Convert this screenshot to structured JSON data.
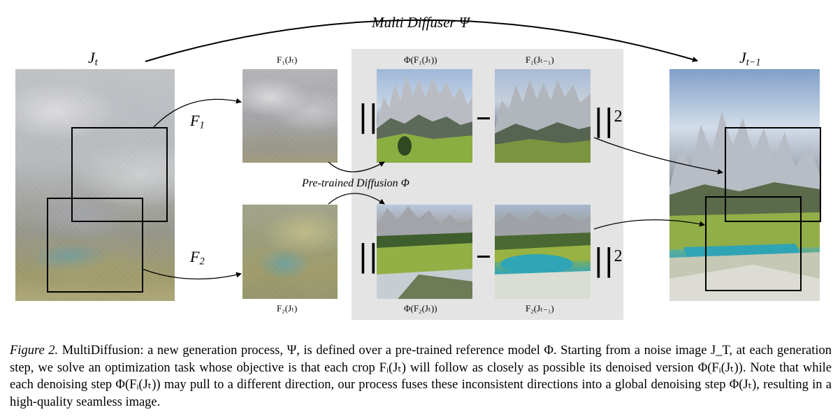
{
  "figure": {
    "multi_diffuser_label": "Multi Diffuser Ψ",
    "jt_label": {
      "base": "J",
      "sub": "t"
    },
    "jt1_label": {
      "base": "J",
      "sub": "t−1"
    },
    "f1_arrow_label": {
      "base": "F",
      "sub": "1"
    },
    "f2_arrow_label": {
      "base": "F",
      "sub": "2"
    },
    "f1_jt_label": "F₁(Jₜ)",
    "f2_jt_label": "F₂(Jₜ)",
    "phi_f1_label": "Φ(F₁(Jₜ))",
    "phi_f2_label": "Φ(F₂(Jₜ))",
    "f1_next_label": "F₁(Jₜ₋₁)",
    "f2_next_label": "F₂(Jₜ₋₁)",
    "pretrained_label": "Pre-trained Diffusion Φ",
    "norm_open": "||",
    "norm_close": "||",
    "norm_power": "2"
  },
  "caption": {
    "label": "Figure 2.",
    "text": "MultiDiffusion: a new generation process, Ψ, is defined over a pre-trained reference model Φ. Starting from a noise image J_T, at each generation step, we solve an optimization task whose objective is that each crop Fᵢ(Jₜ) will follow as closely as possible its denoised version Φ(Fᵢ(Jₜ)). Note that while each denoising step Φ(Fᵢ(Jₜ)) may pull to a different direction, our process fuses these inconsistent directions into a global denoising step Φ(Jₜ), resulting in a high-quality seamless image."
  }
}
